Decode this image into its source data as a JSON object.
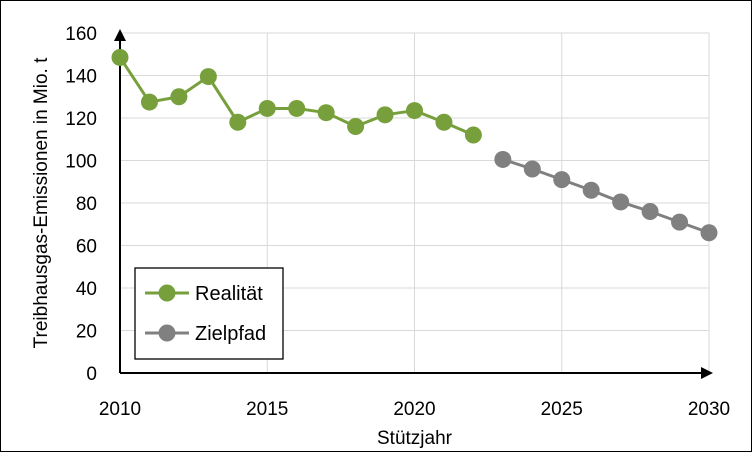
{
  "chart_data": {
    "type": "line",
    "title": "",
    "xlabel": "Stützjahr",
    "ylabel": "Treibhausgas-Emissionen in Mio. t",
    "xlim": [
      2010,
      2030
    ],
    "ylim": [
      0,
      160
    ],
    "x_ticks": [
      "2010",
      "2015",
      "2020",
      "2025",
      "2030"
    ],
    "y_ticks": [
      "0",
      "20",
      "40",
      "60",
      "80",
      "100",
      "120",
      "140",
      "160"
    ],
    "grid": true,
    "legend_position": "bottom-left",
    "series": [
      {
        "name": "Realität",
        "color": "#77a03c",
        "x": [
          2010,
          2011,
          2012,
          2013,
          2014,
          2015,
          2016,
          2017,
          2018,
          2019,
          2020,
          2021,
          2022
        ],
        "values": [
          148.5,
          127.5,
          130,
          139.5,
          118,
          124.5,
          124.5,
          122.5,
          116,
          121.5,
          123.5,
          118,
          112
        ]
      },
      {
        "name": "Zielpfad",
        "color": "#808080",
        "x": [
          2023,
          2024,
          2025,
          2026,
          2027,
          2028,
          2029,
          2030
        ],
        "values": [
          100.5,
          96,
          91,
          86,
          80.5,
          76,
          71,
          66
        ]
      }
    ]
  }
}
